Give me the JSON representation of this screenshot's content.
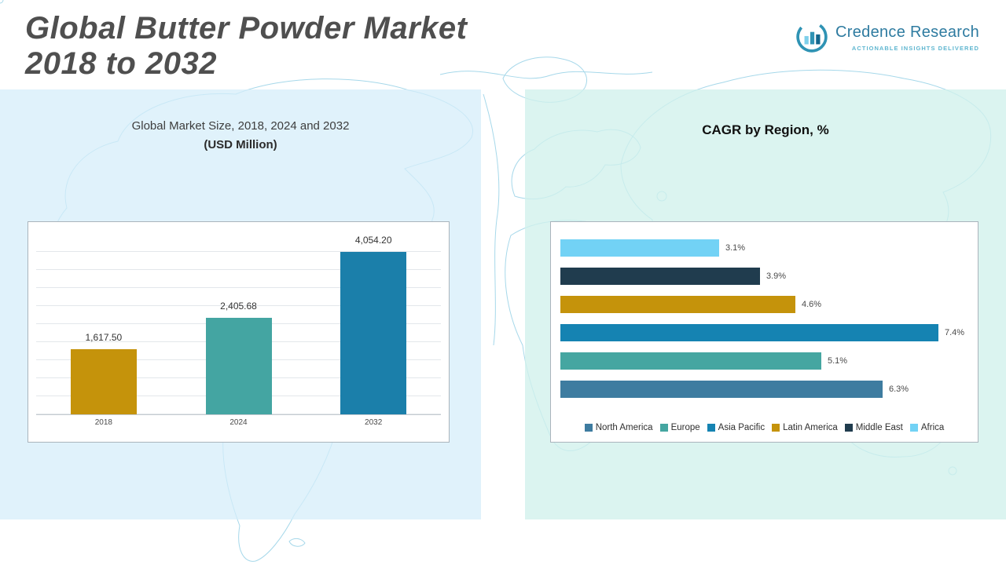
{
  "header": {
    "title_line1": "Global Butter Powder Market",
    "title_line2": "2018 to 2032",
    "logo": {
      "name": "Credence Research",
      "tagline": "Actionable Insights Delivered"
    }
  },
  "panels": {
    "left": {
      "title": "Global Market Size, 2018, 2024 and 2032",
      "subtitle": "(USD Million)"
    },
    "right": {
      "title": "CAGR by Region, %"
    }
  },
  "chart_data": [
    {
      "type": "bar",
      "title": "Global Market Size, 2018, 2024 and 2032 (USD Million)",
      "categories": [
        "2018",
        "2024",
        "2032"
      ],
      "values": [
        1617.5,
        2405.68,
        4054.2
      ],
      "value_labels": [
        "1,617.50",
        "2,405.68",
        "4,054.20"
      ],
      "colors": [
        "#c5930b",
        "#44a5a2",
        "#1b7faa"
      ],
      "ylim": [
        0,
        4500
      ],
      "grid": true
    },
    {
      "type": "bar",
      "orientation": "horizontal",
      "title": "CAGR by Region, %",
      "categories": [
        "Africa",
        "Middle East",
        "Latin America",
        "Asia Pacific",
        "Europe",
        "North America"
      ],
      "values": [
        3.1,
        3.9,
        4.6,
        7.4,
        5.1,
        6.3
      ],
      "value_labels": [
        "3.1%",
        "3.9%",
        "4.6%",
        "7.4%",
        "5.1%",
        "6.3%"
      ],
      "colors": [
        "#72d2f5",
        "#203c4e",
        "#c5930b",
        "#1583b2",
        "#45a6a1",
        "#3e7ca0"
      ],
      "xlim": [
        0,
        8
      ],
      "grid": false,
      "legend": [
        "North America",
        "Europe",
        "Asia Pacific",
        "Latin America",
        "Middle East",
        "Africa"
      ],
      "legend_position": "bottom"
    }
  ]
}
